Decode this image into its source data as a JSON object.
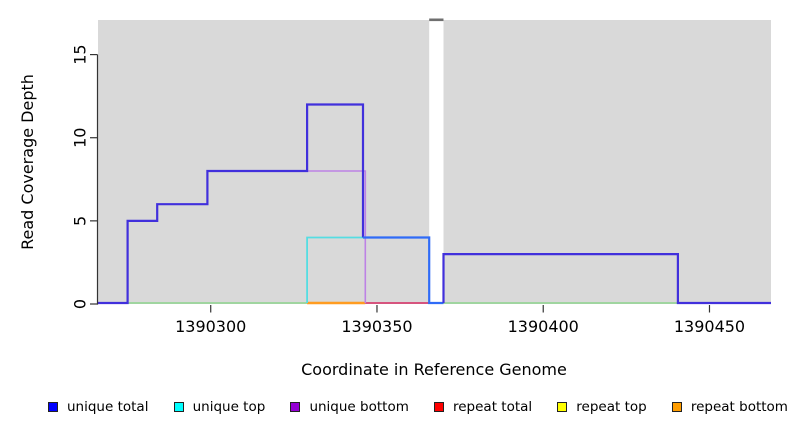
{
  "chart_data": {
    "type": "line",
    "title": "",
    "xlabel": "Coordinate in Reference Genome",
    "ylabel": "Read Coverage Depth",
    "xlim": [
      1390266.1,
      1390468.5
    ],
    "ylim": [
      0,
      17.08
    ],
    "x_ticks": [
      1390300,
      1390350,
      1390400,
      1390450
    ],
    "x_tick_labels": [
      "1390300",
      "1390350",
      "1390400",
      "1390450"
    ],
    "y_ticks": [
      0,
      5,
      10,
      15
    ],
    "y_tick_labels": [
      "0",
      "5",
      "10",
      "15"
    ],
    "grid": false,
    "plot_bg": "#d9d9d9",
    "axis_color": "#333333",
    "legend_position": "bottom",
    "gap": {
      "x0": 1390365.7,
      "x1": 1390370,
      "cap_color": "#6f6f6f"
    },
    "series": [
      {
        "name": "top-overlap-baseline-left",
        "color": "#97d497",
        "w": 1.8,
        "points": [
          [
            1390275,
            0
          ],
          [
            1390329,
            0
          ]
        ]
      },
      {
        "name": "top-overlap-baseline-right",
        "color": "#97d497",
        "w": 1.8,
        "points": [
          [
            1390370,
            0
          ],
          [
            1390440.5,
            0
          ]
        ]
      },
      {
        "name": "repeat-bottom",
        "color": "#ff9c20",
        "w": 2.4,
        "points": [
          [
            1390329,
            0
          ],
          [
            1390346.5,
            0
          ]
        ]
      },
      {
        "name": "repeat-total",
        "color": "#d64070",
        "w": 1.8,
        "points": [
          [
            1390346.5,
            0
          ],
          [
            1390365.7,
            0
          ]
        ]
      },
      {
        "name": "unique-top",
        "color": "#55dde2",
        "w": 1.8,
        "points": [
          [
            1390329,
            0
          ],
          [
            1390329,
            4
          ],
          [
            1390346.5,
            4
          ]
        ]
      },
      {
        "name": "unique-bottom",
        "color": "#bd82e5",
        "w": 1.6,
        "points": [
          [
            1390329,
            8
          ],
          [
            1390346.5,
            8
          ],
          [
            1390346.5,
            0
          ]
        ]
      },
      {
        "name": "unique-total",
        "color": "#4130dc",
        "w": 2.2,
        "points": [
          [
            1390266.1,
            0
          ],
          [
            1390275,
            0
          ],
          [
            1390275,
            5
          ],
          [
            1390283.9,
            5
          ],
          [
            1390283.9,
            6
          ],
          [
            1390299,
            6
          ],
          [
            1390299,
            8
          ],
          [
            1390329,
            8
          ],
          [
            1390329,
            12
          ],
          [
            1390345.8,
            12
          ],
          [
            1390345.8,
            4
          ]
        ]
      },
      {
        "name": "unique-total-over-unique-top",
        "color": "#2f6bf7",
        "w": 2.2,
        "points": [
          [
            1390345.8,
            4
          ],
          [
            1390365.7,
            4
          ],
          [
            1390365.7,
            0
          ],
          [
            1390370,
            0
          ]
        ]
      },
      {
        "name": "unique-total-after-gap",
        "color": "#4130dc",
        "w": 2.2,
        "points": [
          [
            1390370,
            0
          ],
          [
            1390370,
            3
          ],
          [
            1390440.5,
            3
          ],
          [
            1390440.5,
            0
          ],
          [
            1390468.5,
            0
          ]
        ]
      }
    ]
  },
  "legend": {
    "items": [
      {
        "label": "unique total",
        "color": "#0000ff"
      },
      {
        "label": "unique top",
        "color": "#00ffff"
      },
      {
        "label": "unique bottom",
        "color": "#9400d3"
      },
      {
        "label": "repeat total",
        "color": "#ff0000"
      },
      {
        "label": "repeat top",
        "color": "#ffff00"
      },
      {
        "label": "repeat bottom",
        "color": "#ff9d00"
      }
    ]
  }
}
